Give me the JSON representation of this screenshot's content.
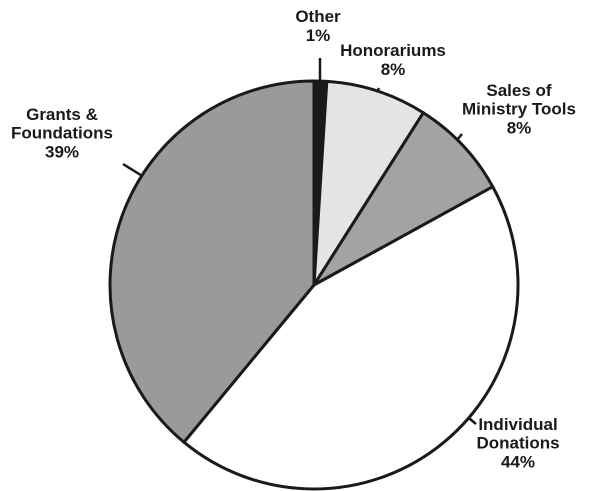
{
  "chart_data": {
    "type": "pie",
    "categories": [
      "Other",
      "Honorariums",
      "Sales of\nMinistry Tools",
      "Individual\nDonations",
      "Grants &\nFoundations"
    ],
    "values": [
      1,
      8,
      8,
      44,
      39
    ],
    "value_labels": [
      "1%",
      "8%",
      "8%",
      "44%",
      "39%"
    ],
    "colors": [
      "#1a1a1a",
      "#e4e4e4",
      "#a3a3a4",
      "#ffffff",
      "#9a9a9a"
    ],
    "start_angle": 0,
    "direction": "clockwise"
  }
}
